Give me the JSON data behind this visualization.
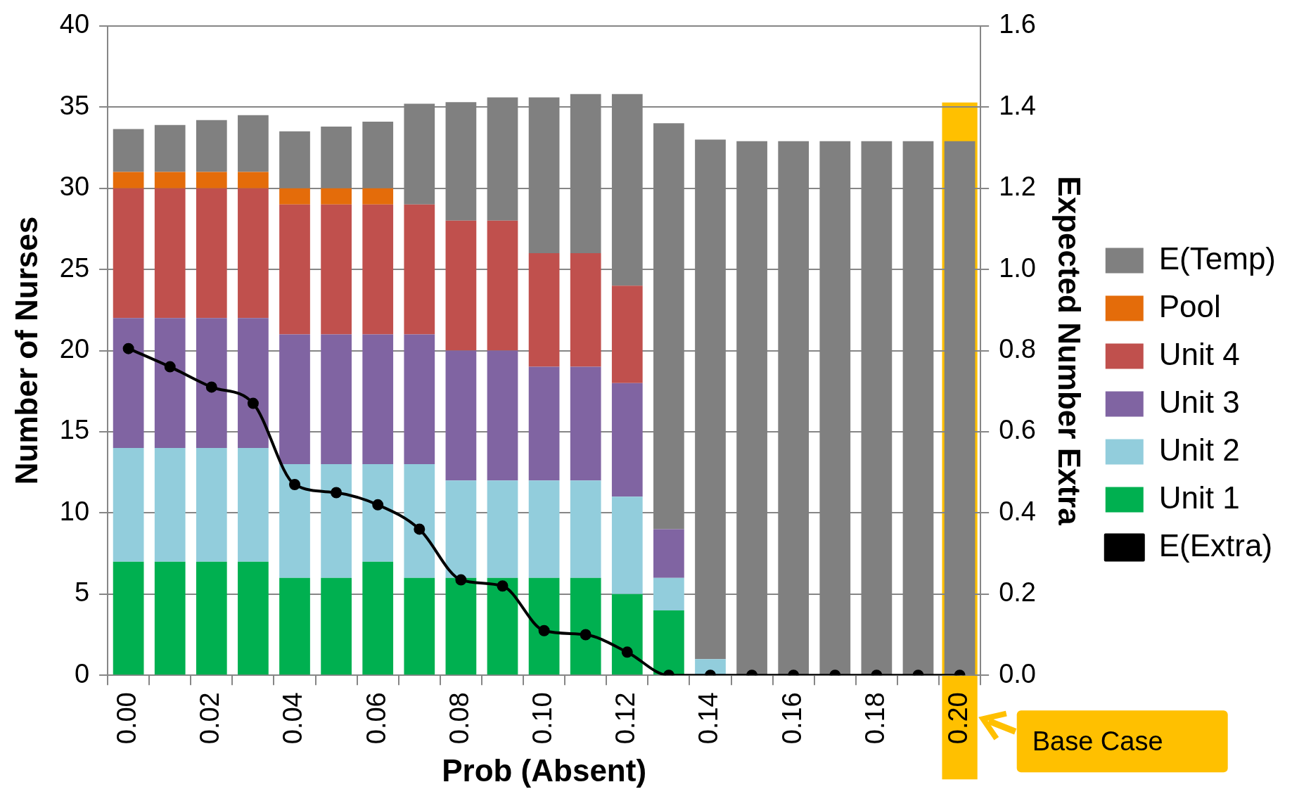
{
  "chart_data": {
    "type": "bar",
    "stacked": true,
    "xlabel": "Prob (Absent)",
    "ylabel": "Number of Nurses",
    "y2label": "Expected Number Extra",
    "categories": [
      "0.00",
      null,
      "0.02",
      null,
      "0.04",
      null,
      "0.06",
      null,
      "0.08",
      null,
      "0.10",
      null,
      "0.12",
      null,
      "0.14",
      null,
      "0.16",
      null,
      "0.18",
      null,
      "0.20"
    ],
    "series": [
      {
        "name": "Unit 1",
        "color": "#00b050",
        "values": [
          7,
          7,
          7,
          7,
          6,
          6,
          7,
          6,
          6,
          6,
          6,
          6,
          5,
          4,
          0,
          0,
          0,
          0,
          0,
          0,
          0
        ]
      },
      {
        "name": "Unit 2",
        "color": "#92cddc",
        "values": [
          7,
          7,
          7,
          7,
          7,
          7,
          6,
          7,
          6,
          6,
          6,
          6,
          6,
          2,
          1,
          0,
          0,
          0,
          0,
          0,
          0
        ]
      },
      {
        "name": "Unit 3",
        "color": "#8064a2",
        "values": [
          8,
          8,
          8,
          8,
          8,
          8,
          8,
          8,
          8,
          8,
          7,
          7,
          7,
          3,
          0,
          0,
          0,
          0,
          0,
          0,
          0
        ]
      },
      {
        "name": "Unit 4",
        "color": "#c0504d",
        "values": [
          8,
          8,
          8,
          8,
          8,
          8,
          8,
          8,
          8,
          8,
          7,
          7,
          6,
          0,
          0,
          0,
          0,
          0,
          0,
          0,
          0
        ]
      },
      {
        "name": "Pool",
        "color": "#e46c0a",
        "values": [
          1,
          1,
          1,
          1,
          1,
          1,
          1,
          0,
          0,
          0,
          0,
          0,
          0,
          0,
          0,
          0,
          0,
          0,
          0,
          0,
          0
        ]
      },
      {
        "name": "E(Temp)",
        "color": "#808080",
        "values": [
          2.65,
          2.9,
          3.2,
          3.5,
          3.5,
          3.8,
          4.1,
          6.2,
          7.3,
          7.6,
          9.6,
          9.8,
          11.8,
          25.0,
          32.0,
          32.9,
          32.9,
          32.9,
          32.9,
          32.9,
          32.9
        ]
      },
      {
        "name": "E(Extra)",
        "type": "line",
        "axis": "y2",
        "color": "#000000",
        "values": [
          0.805,
          0.76,
          0.71,
          0.67,
          0.47,
          0.45,
          0.42,
          0.36,
          0.235,
          0.22,
          0.11,
          0.1,
          0.057,
          0,
          0,
          0,
          0,
          0,
          0,
          0,
          0
        ]
      }
    ],
    "ylim": [
      0,
      40
    ],
    "yticks": [
      0,
      5,
      10,
      15,
      20,
      25,
      30,
      35,
      40
    ],
    "y2lim": [
      0,
      1.6
    ],
    "y2ticks": [
      {
        "value": 0,
        "label": "0.0"
      },
      {
        "value": 0.2,
        "label": "0.2"
      },
      {
        "value": 0.4,
        "label": "0.4"
      },
      {
        "value": 0.6,
        "label": "0.6"
      },
      {
        "value": 0.8,
        "label": "0.8"
      },
      {
        "value": 1.0,
        "label": "1.0"
      },
      {
        "value": 1.2,
        "label": "1.2"
      },
      {
        "value": 1.4,
        "label": "1.4"
      },
      {
        "value": 1.6,
        "label": "1.6"
      }
    ],
    "bands": [
      {
        "axis": "x",
        "from": "0.20",
        "to": "0.20",
        "label": "Base Case",
        "color": "#ffc000"
      }
    ],
    "grid": "y",
    "legend": "right",
    "marker": "circle",
    "line_style": "solid"
  }
}
